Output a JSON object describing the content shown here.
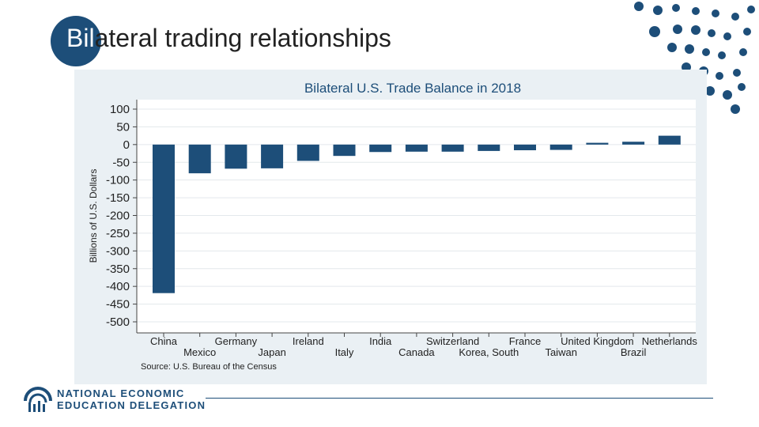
{
  "slide": {
    "title_highlight": "Bil",
    "title_rest": "ateral trading relationships"
  },
  "logo": {
    "line1": "NATIONAL ECONOMIC",
    "line2": "EDUCATION DELEGATION",
    "icon": "need-logo-icon"
  },
  "colors": {
    "bar": "#1d4e79",
    "accent": "#1d4e79",
    "panel": "#eaf0f4"
  },
  "chart_data": {
    "type": "bar",
    "title": "Bilateral U.S. Trade Balance in 2018",
    "ylabel": "Billions of U.S. Dollars",
    "xlabel": "",
    "source": "Source: U.S. Bureau of the Census",
    "ylim": [
      -500,
      100
    ],
    "yticks": [
      100,
      50,
      0,
      -50,
      -100,
      -150,
      -200,
      -250,
      -300,
      -350,
      -400,
      -450,
      -500
    ],
    "grid": true,
    "categories": [
      "China",
      "Mexico",
      "Germany",
      "Japan",
      "Ireland",
      "Italy",
      "India",
      "Canada",
      "Switzerland",
      "Korea, South",
      "France",
      "Taiwan",
      "United Kingdom",
      "Brazil",
      "Netherlands"
    ],
    "values": [
      -419,
      -81,
      -68,
      -67,
      -46,
      -32,
      -21,
      -20,
      -20,
      -18,
      -16,
      -15,
      5,
      8,
      25
    ]
  }
}
